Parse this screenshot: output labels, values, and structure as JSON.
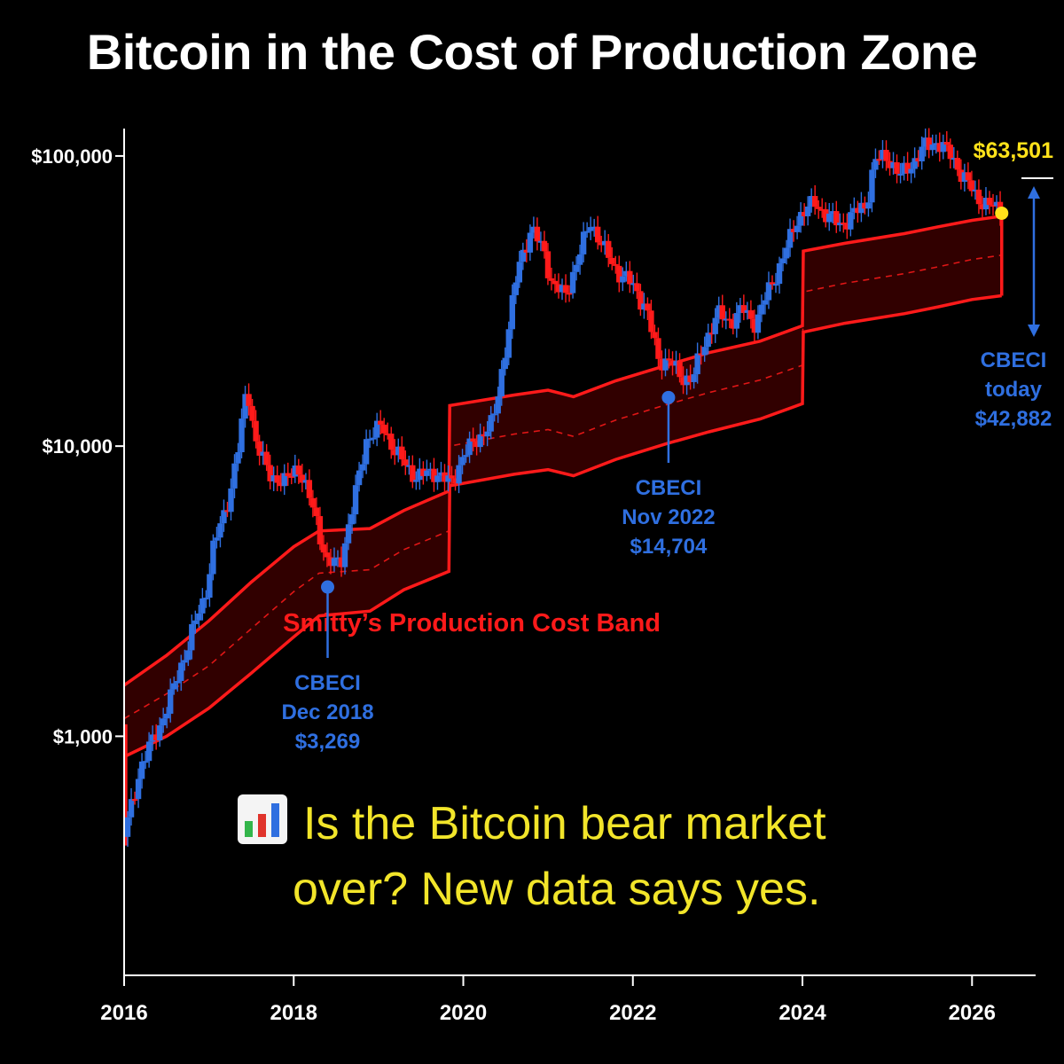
{
  "title": "Bitcoin in the Cost of Production Zone",
  "caption": {
    "icon": "bar-chart-icon",
    "line1": "Is the Bitcoin bear market",
    "line2": "over? New data says yes."
  },
  "colors": {
    "background": "#000000",
    "up_candle": "#2f6fe0",
    "down_candle": "#ff1a1a",
    "band": "#ff1a1a",
    "band_fill": "#3a0000",
    "annotation_blue": "#2f6fe0",
    "current_price": "#ffe21a",
    "caption_text": "#f2e52a"
  },
  "chart_data": {
    "type": "candlestick",
    "title": "Bitcoin in the Cost of Production Zone",
    "y_scale": "log",
    "ylim": [
      150,
      120000
    ],
    "xlim": [
      2016,
      2026.75
    ],
    "y_ticks": [
      {
        "value": 1000,
        "label": "$1,000"
      },
      {
        "value": 10000,
        "label": "$10,000"
      },
      {
        "value": 100000,
        "label": "$100,000"
      }
    ],
    "x_ticks": [
      {
        "value": 2016,
        "label": "2016"
      },
      {
        "value": 2018,
        "label": "2018"
      },
      {
        "value": 2020,
        "label": "2020"
      },
      {
        "value": 2022,
        "label": "2022"
      },
      {
        "value": 2024,
        "label": "2024"
      },
      {
        "value": 2026,
        "label": "2026"
      }
    ],
    "price_path": [
      [
        2016.0,
        450
      ],
      [
        2016.2,
        800
      ],
      [
        2016.4,
        1050
      ],
      [
        2016.6,
        1500
      ],
      [
        2016.8,
        2300
      ],
      [
        2016.95,
        3000
      ],
      [
        2017.05,
        4500
      ],
      [
        2017.2,
        6000
      ],
      [
        2017.35,
        10000
      ],
      [
        2017.45,
        16000
      ],
      [
        2017.55,
        10500
      ],
      [
        2017.7,
        8000
      ],
      [
        2017.9,
        7500
      ],
      [
        2018.05,
        8600
      ],
      [
        2018.25,
        5800
      ],
      [
        2018.4,
        3900
      ],
      [
        2018.55,
        4000
      ],
      [
        2018.7,
        6200
      ],
      [
        2018.85,
        10500
      ],
      [
        2019.05,
        11800
      ],
      [
        2019.2,
        9500
      ],
      [
        2019.45,
        7800
      ],
      [
        2019.65,
        8200
      ],
      [
        2019.85,
        7400
      ],
      [
        2020.0,
        9300
      ],
      [
        2020.15,
        10500
      ],
      [
        2020.35,
        12000
      ],
      [
        2020.5,
        22000
      ],
      [
        2020.65,
        42000
      ],
      [
        2020.8,
        56000
      ],
      [
        2020.95,
        47000
      ],
      [
        2021.05,
        36000
      ],
      [
        2021.2,
        33000
      ],
      [
        2021.35,
        44000
      ],
      [
        2021.5,
        60000
      ],
      [
        2021.65,
        48000
      ],
      [
        2021.85,
        39000
      ],
      [
        2022.0,
        36000
      ],
      [
        2022.15,
        30000
      ],
      [
        2022.3,
        20000
      ],
      [
        2022.45,
        19500
      ],
      [
        2022.55,
        17500
      ],
      [
        2022.7,
        17000
      ],
      [
        2022.85,
        23000
      ],
      [
        2023.0,
        28500
      ],
      [
        2023.15,
        27000
      ],
      [
        2023.3,
        29500
      ],
      [
        2023.45,
        26500
      ],
      [
        2023.6,
        34500
      ],
      [
        2023.75,
        43000
      ],
      [
        2023.95,
        62000
      ],
      [
        2024.15,
        69000
      ],
      [
        2024.3,
        62000
      ],
      [
        2024.45,
        58000
      ],
      [
        2024.6,
        63000
      ],
      [
        2024.75,
        68000
      ],
      [
        2024.85,
        96000
      ],
      [
        2025.0,
        100000
      ],
      [
        2025.15,
        85000
      ],
      [
        2025.3,
        95000
      ],
      [
        2025.45,
        108000
      ],
      [
        2025.6,
        112000
      ],
      [
        2025.75,
        100000
      ],
      [
        2025.9,
        85000
      ],
      [
        2026.05,
        72000
      ],
      [
        2026.2,
        68000
      ],
      [
        2026.35,
        63501
      ]
    ],
    "band": {
      "label": "Smitty’s Production Cost Band",
      "upper": [
        [
          2016.0,
          1500
        ],
        [
          2016.5,
          1900
        ],
        [
          2017.0,
          2500
        ],
        [
          2017.5,
          3400
        ],
        [
          2018.0,
          4500
        ],
        [
          2018.3,
          5100
        ],
        [
          2018.9,
          5200
        ],
        [
          2019.3,
          6000
        ],
        [
          2019.83,
          7000
        ],
        [
          2019.84,
          13800
        ],
        [
          2020.6,
          15000
        ],
        [
          2021.0,
          15600
        ],
        [
          2021.3,
          14800
        ],
        [
          2021.8,
          16800
        ],
        [
          2022.4,
          19000
        ],
        [
          2022.9,
          21000
        ],
        [
          2023.5,
          23000
        ],
        [
          2024.0,
          26000
        ],
        [
          2024.01,
          47000
        ],
        [
          2024.5,
          50000
        ],
        [
          2025.2,
          54000
        ],
        [
          2025.6,
          57000
        ],
        [
          2026.0,
          60000
        ],
        [
          2026.35,
          62000
        ]
      ],
      "lower": [
        [
          2016.0,
          850
        ],
        [
          2016.5,
          1000
        ],
        [
          2017.0,
          1250
        ],
        [
          2017.5,
          1650
        ],
        [
          2018.0,
          2200
        ],
        [
          2018.3,
          2600
        ],
        [
          2018.9,
          2700
        ],
        [
          2019.3,
          3200
        ],
        [
          2019.83,
          3700
        ],
        [
          2019.84,
          7300
        ],
        [
          2020.6,
          8000
        ],
        [
          2021.0,
          8300
        ],
        [
          2021.3,
          7900
        ],
        [
          2021.8,
          9000
        ],
        [
          2022.4,
          10200
        ],
        [
          2022.9,
          11200
        ],
        [
          2023.5,
          12400
        ],
        [
          2024.0,
          14000
        ],
        [
          2024.01,
          24700
        ],
        [
          2024.5,
          26500
        ],
        [
          2025.2,
          28600
        ],
        [
          2025.6,
          30200
        ],
        [
          2026.0,
          32000
        ],
        [
          2026.35,
          33000
        ]
      ],
      "mid": [
        [
          2016.0,
          1150
        ],
        [
          2016.5,
          1400
        ],
        [
          2017.0,
          1750
        ],
        [
          2017.5,
          2350
        ],
        [
          2018.0,
          3150
        ],
        [
          2018.3,
          3650
        ],
        [
          2018.9,
          3750
        ],
        [
          2019.3,
          4400
        ],
        [
          2019.83,
          5100
        ],
        [
          2019.84,
          10000
        ],
        [
          2020.6,
          11000
        ],
        [
          2021.0,
          11400
        ],
        [
          2021.3,
          10800
        ],
        [
          2021.8,
          12300
        ],
        [
          2022.4,
          13900
        ],
        [
          2022.9,
          15300
        ],
        [
          2023.5,
          16900
        ],
        [
          2024.0,
          19000
        ],
        [
          2024.01,
          34000
        ],
        [
          2024.5,
          36400
        ],
        [
          2025.2,
          39300
        ],
        [
          2025.6,
          41500
        ],
        [
          2026.0,
          44000
        ],
        [
          2026.35,
          45500
        ]
      ]
    },
    "annotations": [
      {
        "x": 2018.4,
        "y": 3269,
        "lines": [
          "CBECI",
          "Dec 2018",
          "$3,269"
        ]
      },
      {
        "x": 2022.42,
        "y": 14704,
        "lines": [
          "CBECI",
          "Nov 2022",
          "$14,704"
        ]
      }
    ],
    "current": {
      "x": 2026.35,
      "y": 63501,
      "label": "$63,501"
    },
    "cbeci_today": {
      "lines": [
        "CBECI",
        "today",
        "$42,882"
      ]
    }
  }
}
